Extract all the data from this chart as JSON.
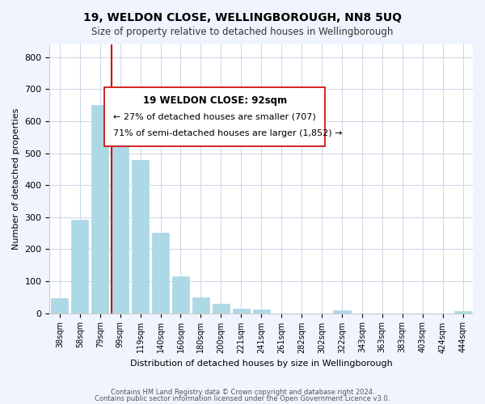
{
  "title": "19, WELDON CLOSE, WELLINGBOROUGH, NN8 5UQ",
  "subtitle": "Size of property relative to detached houses in Wellingborough",
  "xlabel": "Distribution of detached houses by size in Wellingborough",
  "ylabel": "Number of detached properties",
  "bar_labels": [
    "38sqm",
    "58sqm",
    "79sqm",
    "99sqm",
    "119sqm",
    "140sqm",
    "160sqm",
    "180sqm",
    "200sqm",
    "221sqm",
    "241sqm",
    "261sqm",
    "282sqm",
    "302sqm",
    "322sqm",
    "343sqm",
    "363sqm",
    "383sqm",
    "403sqm",
    "424sqm",
    "444sqm"
  ],
  "bar_values": [
    48,
    293,
    651,
    665,
    478,
    251,
    114,
    49,
    28,
    15,
    12,
    0,
    0,
    0,
    9,
    0,
    0,
    0,
    0,
    0,
    7
  ],
  "bar_color": "#add8e6",
  "bar_color_highlight": "#add8e6",
  "vline_x": 3,
  "vline_color": "#cc0000",
  "ylim": [
    0,
    840
  ],
  "yticks": [
    0,
    100,
    200,
    300,
    400,
    500,
    600,
    700,
    800
  ],
  "annotation_title": "19 WELDON CLOSE: 92sqm",
  "annotation_line1": "← 27% of detached houses are smaller (707)",
  "annotation_line2": "71% of semi-detached houses are larger (1,852) →",
  "footer_line1": "Contains HM Land Registry data © Crown copyright and database right 2024.",
  "footer_line2": "Contains public sector information licensed under the Open Government Licence v3.0.",
  "background_color": "#f0f4ff",
  "plot_bg_color": "#ffffff",
  "grid_color": "#d0d8e8"
}
